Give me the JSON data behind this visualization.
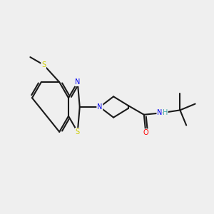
{
  "background_color": "#efefef",
  "bond_color": "#1a1a1a",
  "atom_colors": {
    "N": "#0000ee",
    "S": "#cccc00",
    "O": "#ff0000",
    "H": "#44aaaa",
    "C": "#1a1a1a"
  },
  "figsize": [
    3.0,
    3.0
  ],
  "dpi": 100,
  "xlim": [
    0,
    10
  ],
  "ylim": [
    0,
    10
  ]
}
